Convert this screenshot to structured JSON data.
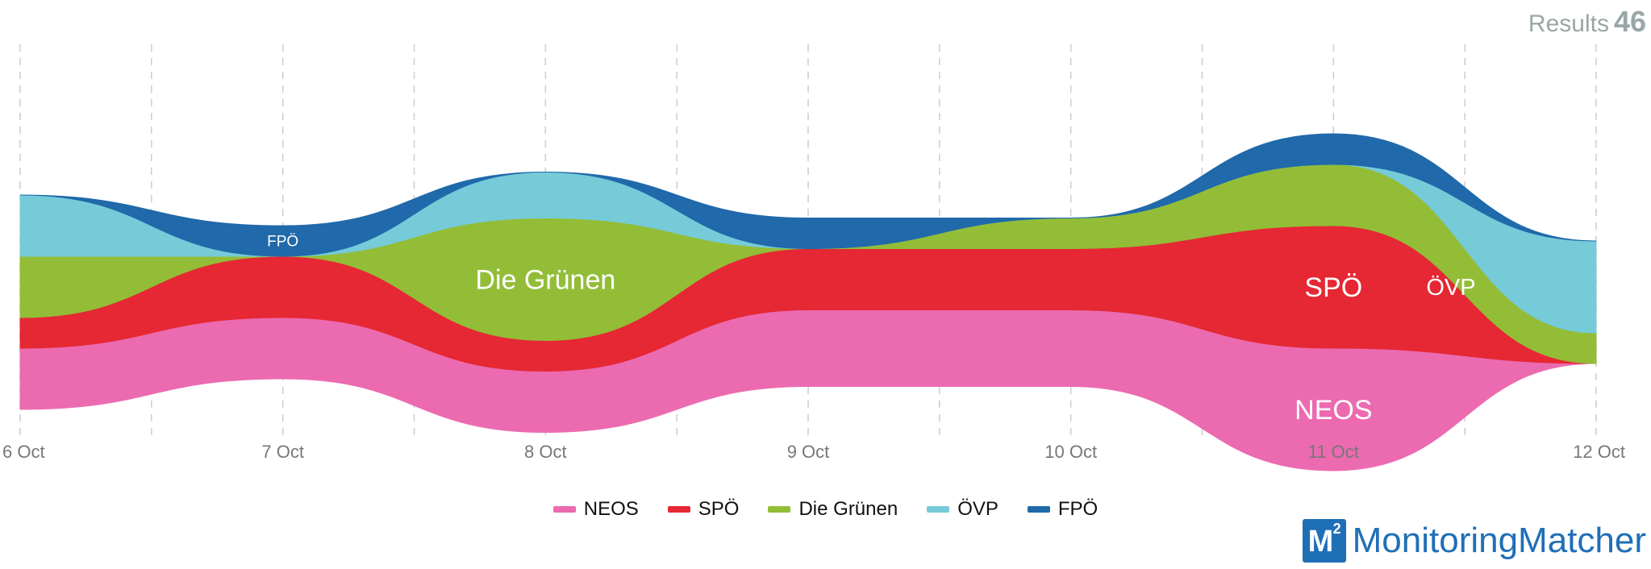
{
  "header": {
    "results_label": "Results",
    "results_count": "46"
  },
  "chart_data": {
    "type": "area",
    "stacked": true,
    "streamgraph": true,
    "categories": [
      "6 Oct",
      "7 Oct",
      "8 Oct",
      "9 Oct",
      "10 Oct",
      "11 Oct",
      "12 Oct"
    ],
    "series": [
      {
        "name": "NEOS",
        "color": "#ec6ab0",
        "values": [
          2,
          2,
          2,
          2.5,
          2.5,
          4,
          0
        ]
      },
      {
        "name": "SPÖ",
        "color": "#e52833",
        "values": [
          1,
          2,
          1,
          2,
          2,
          4,
          0
        ]
      },
      {
        "name": "Die Grünen",
        "color": "#93bd37",
        "values": [
          2,
          0,
          4,
          0,
          1,
          2,
          1
        ]
      },
      {
        "name": "ÖVP",
        "color": "#76cbd9",
        "values": [
          2,
          0,
          1.5,
          0,
          0,
          0,
          3
        ]
      },
      {
        "name": "FPÖ",
        "color": "#2069aa",
        "values": [
          0,
          1,
          0,
          1,
          0,
          1,
          0
        ]
      }
    ],
    "stream_labels": [
      "NEOS",
      "ÖVP",
      "Die Grünen",
      "FPÖ",
      "SPÖ"
    ],
    "grid": {
      "vertical_dashed": true
    },
    "legend": "bottom-center",
    "xlabel": "",
    "ylabel": ""
  },
  "logo": {
    "mark": "M",
    "superscript": "2",
    "text": "MonitoringMatcher"
  }
}
